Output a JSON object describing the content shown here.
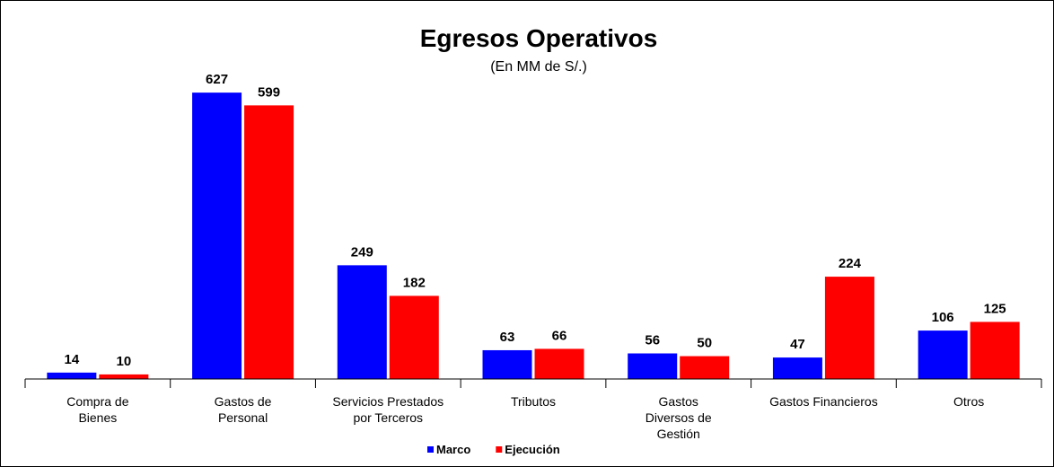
{
  "chart_data": {
    "type": "bar",
    "title": "Egresos Operativos",
    "subtitle": "(En MM de S/.)",
    "categories": [
      "Compra de\nBienes",
      "Gastos de\nPersonal",
      "Servicios Prestados\npor Terceros",
      "Tributos",
      "Gastos\nDiversos de\nGestión",
      "Gastos Financieros",
      "Otros"
    ],
    "series": [
      {
        "name": "Marco",
        "color": "#0000ff",
        "values": [
          14,
          627,
          249,
          63,
          56,
          47,
          106
        ]
      },
      {
        "name": "Ejecución",
        "color": "#ff0000",
        "values": [
          10,
          599,
          182,
          66,
          50,
          224,
          125
        ]
      }
    ],
    "ylim": [
      0,
      700
    ],
    "legend": "bottom"
  }
}
